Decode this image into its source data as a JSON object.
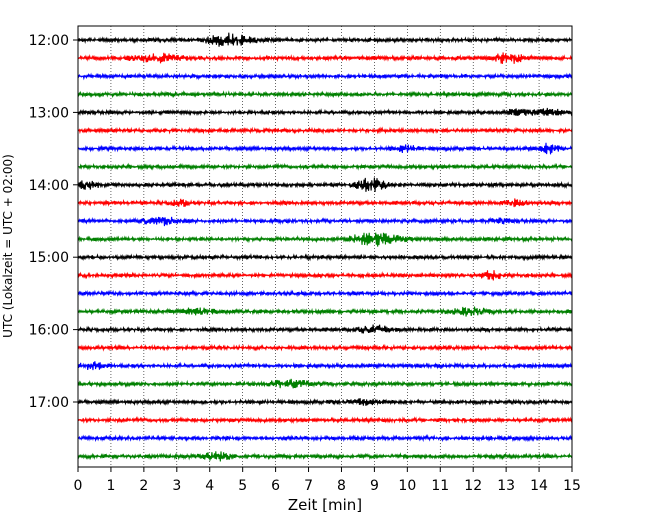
{
  "chart_data": {
    "type": "line",
    "xlabel": "Zeit  [min]",
    "ylabel": "UTC (Lokalzeit = UTC + 02:00)",
    "xlim": [
      0,
      15
    ],
    "x_ticks": [
      0,
      1,
      2,
      3,
      4,
      5,
      6,
      7,
      8,
      9,
      10,
      11,
      12,
      13,
      14,
      15
    ],
    "y_tick_labels": [
      "12:00",
      "13:00",
      "14:00",
      "15:00",
      "16:00",
      "17:00"
    ],
    "y_tick_rows": [
      0,
      4,
      8,
      12,
      16,
      20
    ],
    "grid_x": true,
    "row_colors": [
      "#000000",
      "#ff0000",
      "#0000ff",
      "#008000"
    ],
    "rows": [
      {
        "time": "12:00",
        "color": "#000000"
      },
      {
        "time": "12:15",
        "color": "#ff0000"
      },
      {
        "time": "12:30",
        "color": "#0000ff"
      },
      {
        "time": "12:45",
        "color": "#008000"
      },
      {
        "time": "13:00",
        "color": "#000000"
      },
      {
        "time": "13:15",
        "color": "#ff0000"
      },
      {
        "time": "13:30",
        "color": "#0000ff"
      },
      {
        "time": "13:45",
        "color": "#008000"
      },
      {
        "time": "14:00",
        "color": "#000000"
      },
      {
        "time": "14:15",
        "color": "#ff0000"
      },
      {
        "time": "14:30",
        "color": "#0000ff"
      },
      {
        "time": "14:45",
        "color": "#008000"
      },
      {
        "time": "15:00",
        "color": "#000000"
      },
      {
        "time": "15:15",
        "color": "#ff0000"
      },
      {
        "time": "15:30",
        "color": "#0000ff"
      },
      {
        "time": "15:45",
        "color": "#008000"
      },
      {
        "time": "16:00",
        "color": "#000000"
      },
      {
        "time": "16:15",
        "color": "#ff0000"
      },
      {
        "time": "16:30",
        "color": "#0000ff"
      },
      {
        "time": "16:45",
        "color": "#008000"
      },
      {
        "time": "17:00",
        "color": "#000000"
      },
      {
        "time": "17:15",
        "color": "#ff0000"
      },
      {
        "time": "17:30",
        "color": "#0000ff"
      },
      {
        "time": "17:45",
        "color": "#008000"
      }
    ]
  }
}
